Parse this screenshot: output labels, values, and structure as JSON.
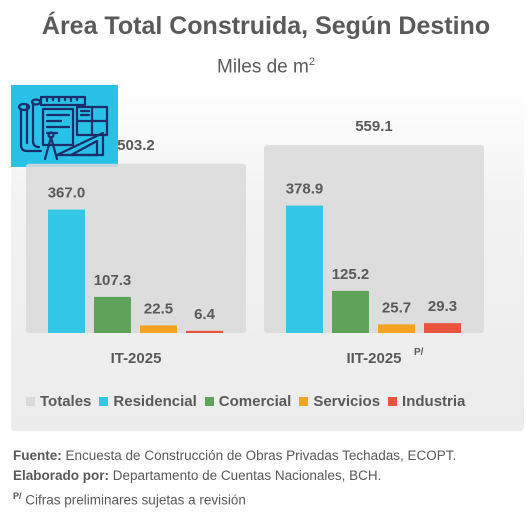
{
  "title": "Área Total Construida, Según Destino",
  "subtitle": "Miles de m",
  "subtitle_sup": "2",
  "colors": {
    "Totales": "#d9d9d9",
    "Residencial": "#33c6e6",
    "Comercial": "#5fa35a",
    "Servicios": "#f5a31f",
    "Industria": "#e8543c"
  },
  "logo_icon": "architecture-blueprint-icon",
  "chart_data": {
    "type": "bar",
    "categories": [
      "IT-2025",
      "IIT-2025"
    ],
    "category_suffix": [
      "",
      "P/"
    ],
    "totals": [
      503.2,
      559.1
    ],
    "series": [
      {
        "name": "Residencial",
        "values": [
          367.0,
          378.9
        ]
      },
      {
        "name": "Comercial",
        "values": [
          107.3,
          125.2
        ]
      },
      {
        "name": "Servicios",
        "values": [
          22.5,
          25.7
        ]
      },
      {
        "name": "Industria",
        "values": [
          6.4,
          29.3
        ]
      }
    ],
    "total_label": "Totales",
    "legend": [
      "Totales",
      "Residencial",
      "Comercial",
      "Servicios",
      "Industria"
    ],
    "legend_position": "bottom",
    "grid": false
  },
  "notes": {
    "source_label": "Fuente:",
    "source_text": "Encuesta de Construcción de Obras Privadas Techadas, ECOPT.",
    "made_by_label": "Elaborado por:",
    "made_by_text": "Departamento de Cuentas Nacionales, BCH.",
    "prelim_sup": "P/",
    "prelim_text": "Cifras preliminares sujetas a revisión"
  }
}
